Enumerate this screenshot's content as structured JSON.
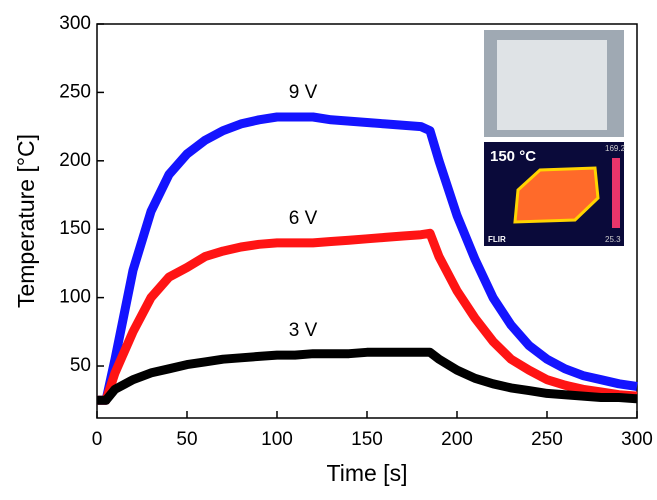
{
  "chart_data": {
    "type": "line",
    "xlabel": "Time [s]",
    "ylabel": "Temperature [°C]",
    "x": [
      0,
      5,
      10,
      20,
      30,
      40,
      50,
      60,
      70,
      80,
      90,
      100,
      110,
      120,
      130,
      140,
      150,
      160,
      170,
      180,
      185,
      190,
      200,
      210,
      220,
      230,
      240,
      250,
      260,
      270,
      280,
      290,
      300
    ],
    "series": [
      {
        "name": "9 V",
        "color": "#1414ff",
        "values": [
          25,
          25,
          55,
          120,
          163,
          190,
          205,
          215,
          222,
          227,
          230,
          232,
          232,
          232,
          230,
          229,
          228,
          227,
          226,
          225,
          222,
          200,
          160,
          128,
          100,
          80,
          65,
          55,
          48,
          43,
          40,
          37,
          35
        ]
      },
      {
        "name": "6 V",
        "color": "#ff1414",
        "values": [
          25,
          25,
          45,
          75,
          100,
          115,
          122,
          130,
          134,
          137,
          139,
          140,
          140,
          140,
          141,
          142,
          143,
          144,
          145,
          146,
          147,
          130,
          105,
          85,
          68,
          55,
          47,
          40,
          36,
          33,
          31,
          29,
          28
        ]
      },
      {
        "name": "3 V",
        "color": "#000000",
        "values": [
          25,
          25,
          33,
          40,
          45,
          48,
          51,
          53,
          55,
          56,
          57,
          58,
          58,
          59,
          59,
          59,
          60,
          60,
          60,
          60,
          60,
          55,
          47,
          41,
          37,
          34,
          32,
          30,
          29,
          28,
          27,
          27,
          26
        ]
      }
    ],
    "xlim": [
      0,
      300
    ],
    "xticks": [
      0,
      50,
      100,
      150,
      200,
      250,
      300
    ],
    "ylim": [
      12,
      300
    ],
    "yticks": [
      50,
      100,
      150,
      200,
      250,
      300
    ],
    "inset": {
      "temperature": "150 °C",
      "scale_max": "169.2",
      "scale_min": "25.3",
      "brand": "FLIR"
    }
  }
}
